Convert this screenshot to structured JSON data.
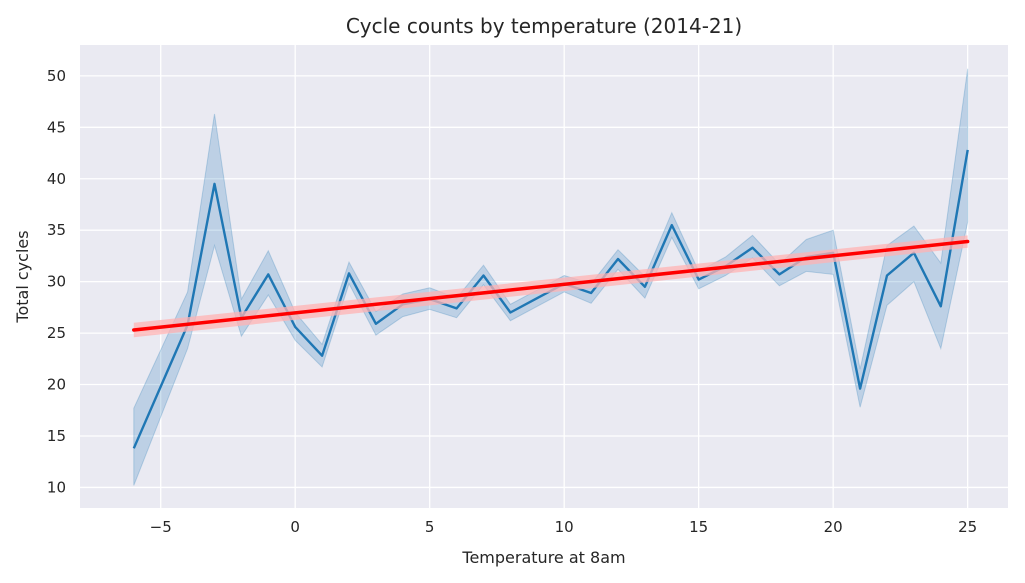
{
  "chart_data": {
    "type": "line",
    "title": "Cycle counts by temperature (2014-21)",
    "xlabel": "Temperature at 8am",
    "ylabel": "Total cycles",
    "xlim": [
      -8,
      26.5
    ],
    "ylim": [
      8,
      53
    ],
    "xticks": [
      -5,
      0,
      5,
      10,
      15,
      20,
      25
    ],
    "yticks": [
      10,
      15,
      20,
      25,
      30,
      35,
      40,
      45,
      50
    ],
    "grid": true,
    "colors": {
      "background": "#eaeaf2",
      "grid": "#ffffff",
      "series": "#1f77b4",
      "band": "#1f77b4",
      "trend": "#ff0000",
      "trend_band": "#ffb3b3"
    },
    "series": [
      {
        "x": [
          -6,
          -4,
          -3,
          -2,
          -1,
          0,
          1,
          2,
          3,
          4,
          5,
          6,
          7,
          8,
          9,
          10,
          11,
          12,
          13,
          14,
          15,
          16,
          17,
          18,
          19,
          20,
          21,
          22,
          23,
          24,
          25
        ],
        "y": [
          13.8,
          25.8,
          39.5,
          26.5,
          30.7,
          25.6,
          22.8,
          30.8,
          25.9,
          27.8,
          28.3,
          27.4,
          30.6,
          27.0,
          28.4,
          29.8,
          28.9,
          32.2,
          29.5,
          35.5,
          30.2,
          31.5,
          33.3,
          30.7,
          32.4,
          32.8,
          19.6,
          30.6,
          32.8,
          27.6,
          42.8
        ],
        "ci_low": [
          10.2,
          23.5,
          33.5,
          24.7,
          28.7,
          24.3,
          21.7,
          29.8,
          24.8,
          26.6,
          27.3,
          26.5,
          29.7,
          26.2,
          27.6,
          29.0,
          27.9,
          31.2,
          28.4,
          34.3,
          29.3,
          30.6,
          32.3,
          29.6,
          31.0,
          30.7,
          17.8,
          27.7,
          30.0,
          23.5,
          35.8
        ],
        "ci_high": [
          17.7,
          29.0,
          46.3,
          28.3,
          33.0,
          27.0,
          23.9,
          31.9,
          27.1,
          28.8,
          29.4,
          28.4,
          31.6,
          27.8,
          29.2,
          30.6,
          29.8,
          33.1,
          30.5,
          36.7,
          31.0,
          32.4,
          34.5,
          31.7,
          34.1,
          35.0,
          21.5,
          33.5,
          35.4,
          31.8,
          50.7
        ]
      }
    ],
    "trend": {
      "x": [
        -6,
        25
      ],
      "y": [
        25.3,
        33.9
      ],
      "band_halfwidth": [
        0.7,
        0.6
      ]
    }
  }
}
